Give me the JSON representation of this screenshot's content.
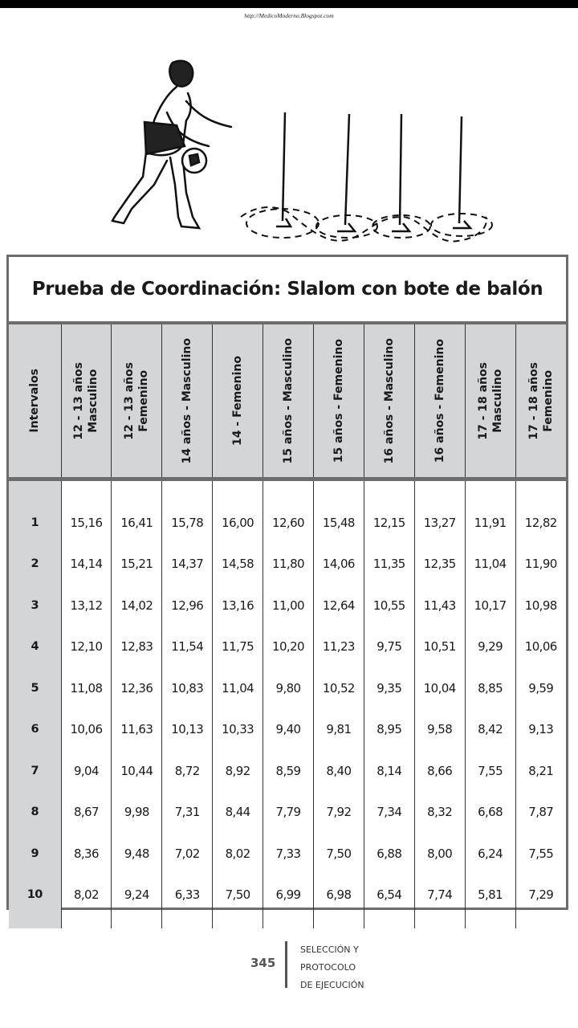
{
  "header": {
    "source_url": "http://MedicoModerno.Blogspot.com"
  },
  "illustration": {
    "description": "Player dribbling a ball through a slalom of four poles",
    "pole_count": 4
  },
  "table": {
    "title": "Prueba de Coordinación: Slalom con bote de balón",
    "columns": [
      "Intervalos",
      "12 - 13 años\nMasculino",
      "12 - 13 años\nFemenino",
      "14 años - Masculino",
      "14 -  Femenino",
      "15 años - Masculino",
      "15 años - Femenino",
      "16 años - Masculino",
      "16 años - Femenino",
      "17 - 18 años\nMasculino",
      "17 - 18 años\nFemenino"
    ],
    "rows": [
      [
        "1",
        "15,16",
        "16,41",
        "15,78",
        "16,00",
        "12,60",
        "15,48",
        "12,15",
        "13,27",
        "11,91",
        "12,82"
      ],
      [
        "2",
        "14,14",
        "15,21",
        "14,37",
        "14,58",
        "11,80",
        "14,06",
        "11,35",
        "12,35",
        "11,04",
        "11,90"
      ],
      [
        "3",
        "13,12",
        "14,02",
        "12,96",
        "13,16",
        "11,00",
        "12,64",
        "10,55",
        "11,43",
        "10,17",
        "10,98"
      ],
      [
        "4",
        "12,10",
        "12,83",
        "11,54",
        "11,75",
        "10,20",
        "11,23",
        "9,75",
        "10,51",
        "9,29",
        "10,06"
      ],
      [
        "5",
        "11,08",
        "12,36",
        "10,83",
        "11,04",
        "9,80",
        "10,52",
        "9,35",
        "10,04",
        "8,85",
        "9,59"
      ],
      [
        "6",
        "10,06",
        "11,63",
        "10,13",
        "10,33",
        "9,40",
        "9,81",
        "8,95",
        "9,58",
        "8,42",
        "9,13"
      ],
      [
        "7",
        "9,04",
        "10,44",
        "8,72",
        "8,92",
        "8,59",
        "8,40",
        "8,14",
        "8,66",
        "7,55",
        "8,21"
      ],
      [
        "8",
        "8,67",
        "9,98",
        "7,31",
        "8,44",
        "7,79",
        "7,92",
        "7,34",
        "8,32",
        "6,68",
        "7,87"
      ],
      [
        "9",
        "8,36",
        "9,48",
        "7,02",
        "8,02",
        "7,33",
        "7,50",
        "6,88",
        "8,00",
        "6,24",
        "7,55"
      ],
      [
        "10",
        "8,02",
        "9,24",
        "6,33",
        "7,50",
        "6,99",
        "6,98",
        "6,54",
        "7,74",
        "5,81",
        "7,29"
      ]
    ]
  },
  "footer": {
    "page_number": "345",
    "section_lines": [
      "SELECCIÓN Y",
      "PROTOCOLO",
      "DE EJECUCIÓN"
    ]
  },
  "colors": {
    "header_fill": "#d4d5d7",
    "frame_border": "#6d6d6d",
    "text": "#1a1a1a"
  }
}
